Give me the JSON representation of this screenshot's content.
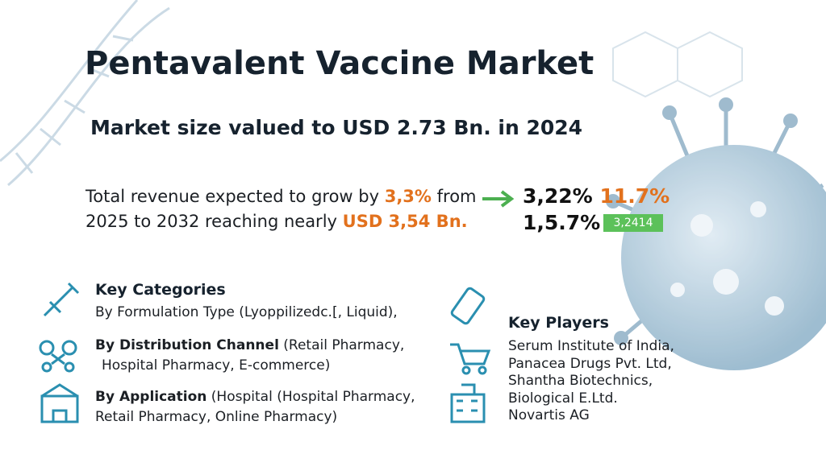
{
  "header": {
    "title": "Pentavalent Vaccine Market",
    "subtitle": "Market size valued to USD 2.73 Bn. in 2024"
  },
  "growth": {
    "line1_start": "Total revenue expected to grow by ",
    "line1_highlight": "3,3%",
    "line1_end": " from",
    "line2_start": "2025 to 2032 reaching nearly ",
    "line2_highlight": "USD 3,54 Bn."
  },
  "stats": {
    "row1_value": "3,22%",
    "row1_highlight": "11.7%",
    "row2_value": "1,5.7%",
    "row2_badge": "3,2414"
  },
  "categories": {
    "title": "Key Categories",
    "items": [
      {
        "label": "By Formulation Type (Lyoppilizedc.[, Liquid),"
      },
      {
        "bold": "By Distribution Channel",
        "line1": " (Retail Pharmacy,",
        "line2": "Hospital Pharmacy, E-commerce)"
      },
      {
        "bold": "By Application",
        "line1": " (Hospital (Hospital Pharmacy,",
        "line2": "Retail Pharmacy, Online Pharmacy)"
      }
    ]
  },
  "players": {
    "title": "Key Players",
    "items": [
      "Serum Institute of India,",
      "Panacea Drugs Pvt. Ltd,",
      "Shantha Biotechnics,",
      "Biological E.Ltd.",
      "Novartis AG"
    ]
  }
}
